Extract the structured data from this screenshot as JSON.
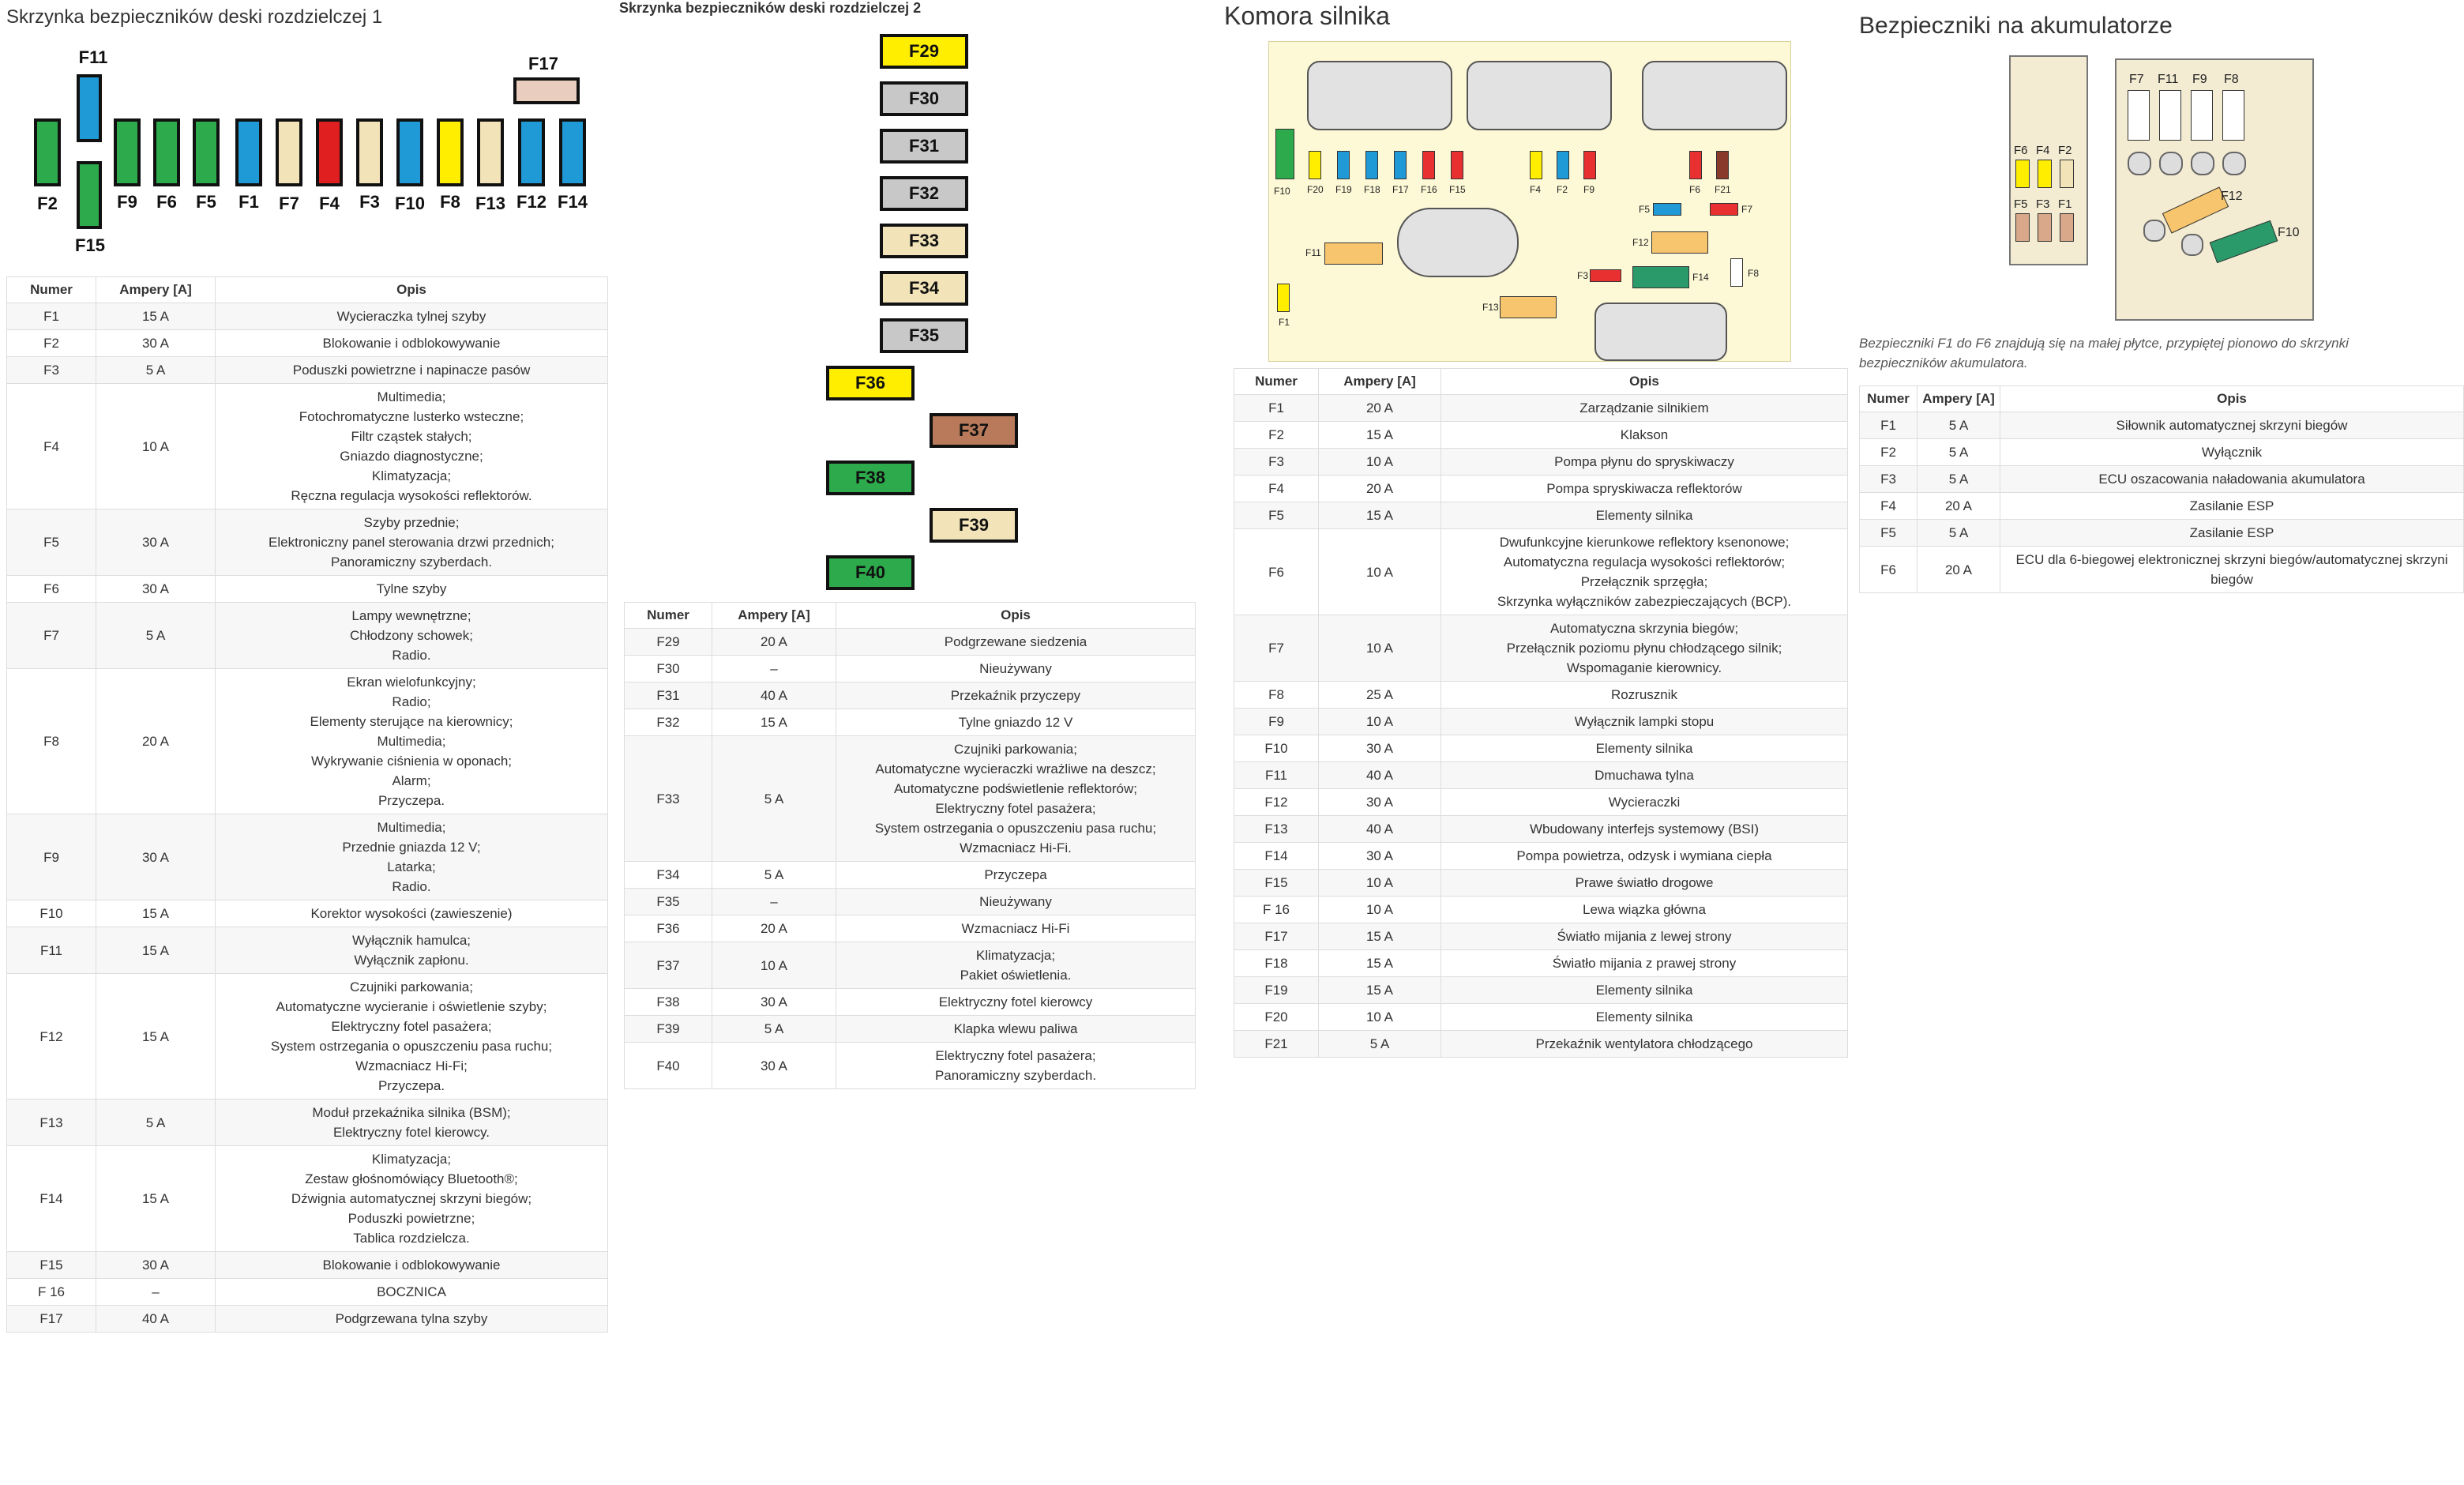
{
  "panels": {
    "dashboard1": {
      "title": "Skrzynka bezpieczników deski rozdzielczej 1",
      "fuse_labels": {
        "F11": "F11",
        "F17": "F17",
        "F2": "F2",
        "F9": "F9",
        "F6": "F6",
        "F5": "F5",
        "F1": "F1",
        "F7": "F7",
        "F4": "F4",
        "F3": "F3",
        "F10": "F10",
        "F8": "F8",
        "F13": "F13",
        "F12": "F12",
        "F14": "F14",
        "F15": "F15"
      },
      "colors": {
        "green": "#2daa4b",
        "blue": "#1f9ad6",
        "beige": "#f2e4b8",
        "red": "#e02020",
        "yellow": "#ffee00",
        "pink": "#e9cdbf"
      },
      "headers": [
        "Numer",
        "Ampery [A]",
        "Opis"
      ],
      "rows": [
        {
          "num": "F1",
          "amp": "15 A",
          "desc": [
            "Wycieraczka tylnej szyby"
          ]
        },
        {
          "num": "F2",
          "amp": "30 A",
          "desc": [
            "Blokowanie i odblokowywanie"
          ]
        },
        {
          "num": "F3",
          "amp": "5 A",
          "desc": [
            "Poduszki powietrzne i napinacze pasów"
          ]
        },
        {
          "num": "F4",
          "amp": "10 A",
          "desc": [
            "Multimedia;",
            "Fotochromatyczne lusterko wsteczne;",
            "Filtr cząstek stałych;",
            "Gniazdo diagnostyczne;",
            "Klimatyzacja;",
            "Ręczna regulacja wysokości reflektorów."
          ]
        },
        {
          "num": "F5",
          "amp": "30 A",
          "desc": [
            "Szyby przednie;",
            "Elektroniczny panel sterowania drzwi przednich;",
            "Panoramiczny szyberdach."
          ]
        },
        {
          "num": "F6",
          "amp": "30 A",
          "desc": [
            "Tylne szyby"
          ]
        },
        {
          "num": "F7",
          "amp": "5 A",
          "desc": [
            "Lampy wewnętrzne;",
            "Chłodzony schowek;",
            "Radio."
          ]
        },
        {
          "num": "F8",
          "amp": "20 A",
          "desc": [
            "Ekran wielofunkcyjny;",
            "Radio;",
            "Elementy sterujące na kierownicy;",
            "Multimedia;",
            "Wykrywanie ciśnienia w oponach;",
            "Alarm;",
            "Przyczepa."
          ]
        },
        {
          "num": "F9",
          "amp": "30 A",
          "desc": [
            "Multimedia;",
            "Przednie gniazda 12 V;",
            "Latarka;",
            "Radio."
          ]
        },
        {
          "num": "F10",
          "amp": "15 A",
          "desc": [
            "Korektor wysokości (zawieszenie)"
          ]
        },
        {
          "num": "F11",
          "amp": "15 A",
          "desc": [
            "Wyłącznik hamulca;",
            "Wyłącznik zapłonu."
          ]
        },
        {
          "num": "F12",
          "amp": "15 A",
          "desc": [
            "Czujniki parkowania;",
            "Automatyczne wycieranie i oświetlenie szyby;",
            "Elektryczny fotel pasażera;",
            "System ostrzegania o opuszczeniu pasa ruchu;",
            "Wzmacniacz Hi-Fi;",
            "Przyczepa."
          ]
        },
        {
          "num": "F13",
          "amp": "5 A",
          "desc": [
            "Moduł przekaźnika silnika (BSM);",
            "Elektryczny fotel kierowcy."
          ]
        },
        {
          "num": "F14",
          "amp": "15 A",
          "desc": [
            "Klimatyzacja;",
            "Zestaw głośnomówiący Bluetooth®;",
            "Dźwignia automatycznej skrzyni biegów;",
            "Poduszki powietrzne;",
            "Tablica rozdzielcza."
          ]
        },
        {
          "num": "F15",
          "amp": "30 A",
          "desc": [
            "Blokowanie i odblokowywanie"
          ]
        },
        {
          "num": "F 16",
          "amp": "–",
          "desc": [
            "BOCZNICA"
          ]
        },
        {
          "num": "F17",
          "amp": "40 A",
          "desc": [
            "Podgrzewana tylna szyby"
          ]
        }
      ]
    },
    "dashboard2": {
      "title": "Skrzynka bezpieczników deski rozdzielczej 2",
      "fuses": [
        {
          "label": "F29",
          "color": "#ffee00"
        },
        {
          "label": "F30",
          "color": "#c8c8c8"
        },
        {
          "label": "F31",
          "color": "#c8c8c8"
        },
        {
          "label": "F32",
          "color": "#c8c8c8"
        },
        {
          "label": "F33",
          "color": "#f2e4b8"
        },
        {
          "label": "F34",
          "color": "#f2e4b8"
        },
        {
          "label": "F35",
          "color": "#c8c8c8"
        },
        {
          "label": "F36",
          "color": "#ffee00"
        },
        {
          "label": "F37",
          "color": "#b87a5a"
        },
        {
          "label": "F38",
          "color": "#2daa4b"
        },
        {
          "label": "F39",
          "color": "#f2e4b8"
        },
        {
          "label": "F40",
          "color": "#2daa4b"
        }
      ],
      "headers": [
        "Numer",
        "Ampery [A]",
        "Opis"
      ],
      "rows": [
        {
          "num": "F29",
          "amp": "20 A",
          "desc": [
            "Podgrzewane siedzenia"
          ]
        },
        {
          "num": "F30",
          "amp": "–",
          "desc": [
            "Nieużywany"
          ]
        },
        {
          "num": "F31",
          "amp": "40 A",
          "desc": [
            "Przekaźnik przyczepy"
          ]
        },
        {
          "num": "F32",
          "amp": "15 A",
          "desc": [
            "Tylne gniazdo 12 V"
          ]
        },
        {
          "num": "F33",
          "amp": "5 A",
          "desc": [
            "Czujniki parkowania;",
            "Automatyczne wycieraczki wrażliwe na deszcz;",
            "Automatyczne podświetlenie reflektorów;",
            "Elektryczny fotel pasażera;",
            "System ostrzegania o opuszczeniu pasa ruchu;",
            "Wzmacniacz Hi-Fi."
          ]
        },
        {
          "num": "F34",
          "amp": "5 A",
          "desc": [
            "Przyczepa"
          ]
        },
        {
          "num": "F35",
          "amp": "–",
          "desc": [
            "Nieużywany"
          ]
        },
        {
          "num": "F36",
          "amp": "20 A",
          "desc": [
            "Wzmacniacz Hi-Fi"
          ]
        },
        {
          "num": "F37",
          "amp": "10 A",
          "desc": [
            "Klimatyzacja;",
            "Pakiet oświetlenia."
          ]
        },
        {
          "num": "F38",
          "amp": "30 A",
          "desc": [
            "Elektryczny fotel kierowcy"
          ]
        },
        {
          "num": "F39",
          "amp": "5 A",
          "desc": [
            "Klapka wlewu paliwa"
          ]
        },
        {
          "num": "F40",
          "amp": "30 A",
          "desc": [
            "Elektryczny fotel pasażera;",
            "Panoramiczny szyberdach."
          ]
        }
      ]
    },
    "engine": {
      "title": "Komora silnika",
      "fuse_labels": {
        "F10": "F10",
        "F20": "F20",
        "F19": "F19",
        "F18": "F18",
        "F17": "F17",
        "F16": "F16",
        "F15": "F15",
        "F4": "F4",
        "F2": "F2",
        "F9": "F9",
        "F6": "F6",
        "F21": "F21",
        "F5": "F5",
        "F7": "F7",
        "F11": "F11",
        "F12": "F12",
        "F3": "F3",
        "F14": "F14",
        "F8": "F8",
        "F13": "F13",
        "F1": "F1"
      },
      "headers": [
        "Numer",
        "Ampery [A]",
        "Opis"
      ],
      "rows": [
        {
          "num": "F1",
          "amp": "20 A",
          "desc": [
            "Zarządzanie silnikiem"
          ]
        },
        {
          "num": "F2",
          "amp": "15 A",
          "desc": [
            "Klakson"
          ]
        },
        {
          "num": "F3",
          "amp": "10 A",
          "desc": [
            "Pompa płynu do spryskiwaczy"
          ]
        },
        {
          "num": "F4",
          "amp": "20 A",
          "desc": [
            "Pompa spryskiwacza reflektorów"
          ]
        },
        {
          "num": "F5",
          "amp": "15 A",
          "desc": [
            "Elementy silnika"
          ]
        },
        {
          "num": "F6",
          "amp": "10 A",
          "desc": [
            "Dwufunkcyjne kierunkowe reflektory ksenonowe;",
            "Automatyczna regulacja wysokości reflektorów;",
            "Przełącznik sprzęgła;",
            "Skrzynka wyłączników zabezpieczających (BCP)."
          ]
        },
        {
          "num": "F7",
          "amp": "10 A",
          "desc": [
            "Automatyczna skrzynia biegów;",
            "Przełącznik poziomu płynu chłodzącego silnik;",
            "Wspomaganie kierownicy."
          ]
        },
        {
          "num": "F8",
          "amp": "25 A",
          "desc": [
            "Rozrusznik"
          ]
        },
        {
          "num": "F9",
          "amp": "10 A",
          "desc": [
            "Wyłącznik lampki stopu"
          ]
        },
        {
          "num": "F10",
          "amp": "30 A",
          "desc": [
            "Elementy silnika"
          ]
        },
        {
          "num": "F11",
          "amp": "40 A",
          "desc": [
            "Dmuchawa tylna"
          ]
        },
        {
          "num": "F12",
          "amp": "30 A",
          "desc": [
            "Wycieraczki"
          ]
        },
        {
          "num": "F13",
          "amp": "40 A",
          "desc": [
            "Wbudowany interfejs systemowy (BSI)"
          ]
        },
        {
          "num": "F14",
          "amp": "30 A",
          "desc": [
            "Pompa powietrza, odzysk i wymiana ciepła"
          ]
        },
        {
          "num": "F15",
          "amp": "10 A",
          "desc": [
            "Prawe światło drogowe"
          ]
        },
        {
          "num": "F 16",
          "amp": "10 A",
          "desc": [
            "Lewa wiązka główna"
          ]
        },
        {
          "num": "F17",
          "amp": "15 A",
          "desc": [
            "Światło mijania z lewej strony"
          ]
        },
        {
          "num": "F18",
          "amp": "15 A",
          "desc": [
            "Światło mijania z prawej strony"
          ]
        },
        {
          "num": "F19",
          "amp": "15 A",
          "desc": [
            "Elementy silnika"
          ]
        },
        {
          "num": "F20",
          "amp": "10 A",
          "desc": [
            "Elementy silnika"
          ]
        },
        {
          "num": "F21",
          "amp": "5 A",
          "desc": [
            "Przekaźnik wentylatora chłodzącego"
          ]
        }
      ]
    },
    "battery": {
      "title": "Bezpieczniki na akumulatorze",
      "fuse_labels": {
        "F7": "F7",
        "F11": "F11",
        "F9": "F9",
        "F8": "F8",
        "F6": "F6",
        "F4": "F4",
        "F2": "F2",
        "F5": "F5",
        "F3": "F3",
        "F1": "F1",
        "F12": "F12",
        "F10": "F10"
      },
      "note": "Bezpieczniki F1 do F6 znajdują się na małej płytce, przypiętej pionowo do skrzynki bezpieczników akumulatora.",
      "headers": [
        "Numer",
        "Ampery [A]",
        "Opis"
      ],
      "rows": [
        {
          "num": "F1",
          "amp": "5 A",
          "desc": [
            "Siłownik automatycznej skrzyni biegów"
          ]
        },
        {
          "num": "F2",
          "amp": "5 A",
          "desc": [
            "Wyłącznik"
          ]
        },
        {
          "num": "F3",
          "amp": "5 A",
          "desc": [
            "ECU oszacowania naładowania akumulatora"
          ]
        },
        {
          "num": "F4",
          "amp": "20 A",
          "desc": [
            "Zasilanie ESP"
          ]
        },
        {
          "num": "F5",
          "amp": "5 A",
          "desc": [
            "Zasilanie ESP"
          ]
        },
        {
          "num": "F6",
          "amp": "20 A",
          "desc": [
            "ECU dla 6-biegowej elektronicznej skrzyni biegów/automatycznej skrzyni biegów"
          ]
        }
      ]
    }
  }
}
